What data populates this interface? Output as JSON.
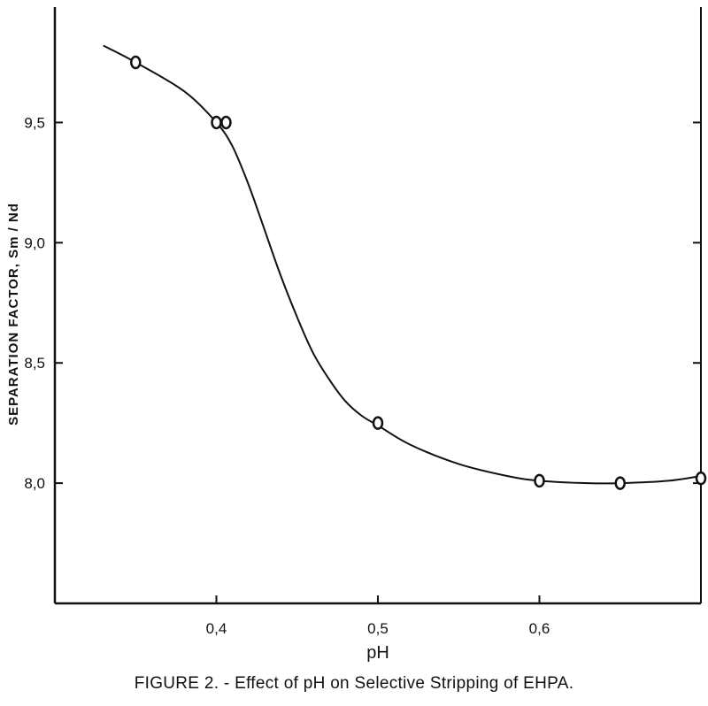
{
  "chart_data": {
    "type": "scatter",
    "title": "",
    "xlabel": "pH",
    "ylabel": "SEPARATION FACTOR, Sm / Nd",
    "xlim": [
      0.3,
      0.7
    ],
    "ylim": [
      7.5,
      9.98
    ],
    "x_ticks": [
      0.4,
      0.5,
      0.6
    ],
    "x_tick_labels": [
      "0,4",
      "0,5",
      "0,6"
    ],
    "y_ticks": [
      8.0,
      8.5,
      9.0,
      9.5
    ],
    "y_tick_labels": [
      "8,0",
      "8,5",
      "9,0",
      "9,5"
    ],
    "grid": false,
    "series": [
      {
        "points": [
          {
            "x": 0.35,
            "y": 9.75
          },
          {
            "x": 0.4,
            "y": 9.5
          },
          {
            "x": 0.406,
            "y": 9.5
          },
          {
            "x": 0.5,
            "y": 8.25
          },
          {
            "x": 0.6,
            "y": 8.01
          },
          {
            "x": 0.65,
            "y": 8.0
          },
          {
            "x": 0.7,
            "y": 8.02
          }
        ]
      }
    ],
    "fit_curve": {
      "x": [
        0.33,
        0.35,
        0.38,
        0.4,
        0.41,
        0.42,
        0.43,
        0.44,
        0.45,
        0.46,
        0.47,
        0.48,
        0.49,
        0.5,
        0.52,
        0.55,
        0.58,
        0.6,
        0.63,
        0.65,
        0.68,
        0.7
      ],
      "y": [
        9.82,
        9.75,
        9.63,
        9.5,
        9.4,
        9.24,
        9.05,
        8.86,
        8.69,
        8.54,
        8.43,
        8.34,
        8.28,
        8.24,
        8.16,
        8.08,
        8.03,
        8.01,
        8.0,
        8.0,
        8.01,
        8.03
      ]
    }
  },
  "caption": "FIGURE 2. - Effect of pH on Selective Stripping of EHPA."
}
